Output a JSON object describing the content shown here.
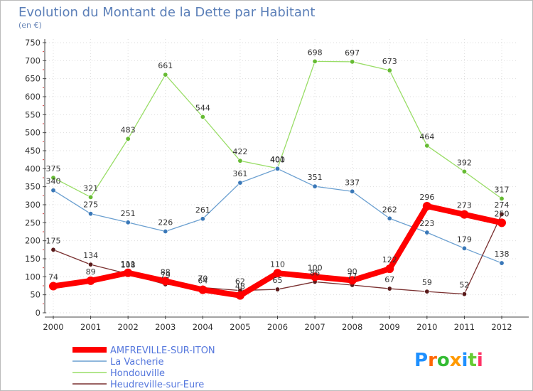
{
  "title": "Evolution du Montant de la Dette par Habitant",
  "subtitle": "(en €)",
  "chart_data": {
    "type": "line",
    "x": [
      "2000",
      "2001",
      "2002",
      "2003",
      "2004",
      "2005",
      "2006",
      "2007",
      "2008",
      "2009",
      "2010",
      "2011",
      "2012"
    ],
    "ylim": [
      0,
      750
    ],
    "yticks": [
      0,
      50,
      100,
      150,
      200,
      250,
      300,
      350,
      400,
      450,
      500,
      550,
      600,
      650,
      700,
      750
    ],
    "grid": true,
    "legend_position": "bottom-left",
    "series": [
      {
        "name": "AMFREVILLE-SUR-ITON",
        "color": "#ff0000",
        "width": 8,
        "values": [
          74,
          89,
          111,
          88,
          64,
          48,
          110,
          100,
          90,
          122,
          296,
          273,
          250
        ],
        "labels": [
          "74",
          "89",
          "111",
          "88",
          "64",
          "48",
          "110",
          "100",
          "90",
          "122",
          "296",
          "273",
          "250"
        ]
      },
      {
        "name": "La Vacherie",
        "color": "#6a9fd0",
        "marker": "#3a78b8",
        "width": 1.3,
        "values": [
          340,
          275,
          251,
          226,
          261,
          361,
          400,
          351,
          337,
          262,
          223,
          179,
          138
        ],
        "labels": [
          "340",
          "275",
          "251",
          "226",
          "261",
          "361",
          "400",
          "351",
          "337",
          "262",
          "223",
          "179",
          "138"
        ]
      },
      {
        "name": "Hondouville",
        "color": "#99dd66",
        "marker": "#66bb33",
        "width": 1.3,
        "values": [
          375,
          321,
          483,
          661,
          544,
          422,
          401,
          698,
          697,
          673,
          464,
          392,
          317
        ],
        "labels": [
          "375",
          "321",
          "483",
          "661",
          "544",
          "422",
          "401",
          "698",
          "697",
          "673",
          "464",
          "392",
          "317"
        ]
      },
      {
        "name": "Heudreville-sur-Eure",
        "color": "#7a3030",
        "marker": "#5a1a1a",
        "width": 1.3,
        "values": [
          175,
          134,
          108,
          79,
          70,
          62,
          65,
          86,
          77,
          67,
          59,
          52,
          274
        ],
        "labels": [
          "175",
          "134",
          "108",
          "79",
          "70",
          "62",
          "65",
          "86",
          "77",
          "67",
          "59",
          "52",
          "274"
        ]
      }
    ]
  },
  "logo": {
    "text": "Proxiti",
    "colors": [
      "#1e90ff",
      "#ff6600",
      "#33bb33",
      "#ff9900",
      "#1e90ff",
      "#66cc33",
      "#ff3366"
    ]
  }
}
